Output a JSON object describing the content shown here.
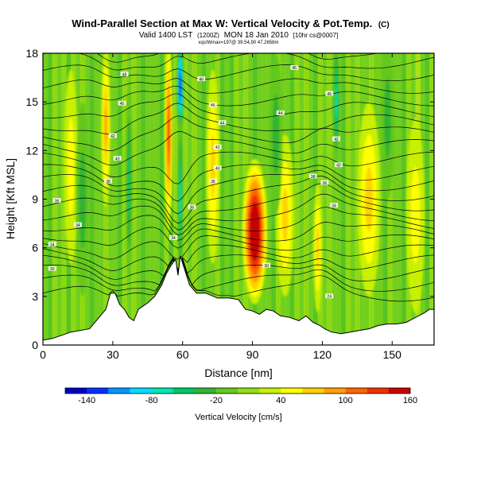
{
  "chart_data": {
    "type": "heatmap",
    "title": "Wind-Parallel Section at Max W: Vertical Velocity & Pot.Temp.",
    "title_unit": "(C)",
    "subtitle_main": "Valid 1400 LST",
    "subtitle_paren": "(1200Z)",
    "subtitle_date": "MON 18 Jan 2010",
    "subtitle_note": "[10hr cs@0007]",
    "small_note": "xqs/Wmax=197@ 39.54,90 47.2658m",
    "xlabel": "Distance [nm]",
    "ylabel": "Height [Kft MSL]",
    "xlim": [
      0,
      168
    ],
    "ylim": [
      0,
      18
    ],
    "xticks": [
      "0",
      "30",
      "60",
      "90",
      "120",
      "150"
    ],
    "yticks": [
      "0",
      "3",
      "6",
      "9",
      "12",
      "15",
      "18"
    ],
    "colorbar": {
      "label": "Vertical Velocity [cm/s]",
      "tick_labels": [
        "-140",
        "-80",
        "-20",
        "40",
        "100",
        "160"
      ],
      "colors": [
        "#0000c8",
        "#0032ff",
        "#0096ff",
        "#00dcff",
        "#00e6b4",
        "#00c864",
        "#32b432",
        "#64c81e",
        "#96dc14",
        "#c8f000",
        "#ffff00",
        "#ffd200",
        "#ffa000",
        "#ff6400",
        "#f03200",
        "#c80000"
      ]
    },
    "terrain": [
      [
        0,
        0.3
      ],
      [
        4,
        0.4
      ],
      [
        8,
        0.6
      ],
      [
        12,
        0.8
      ],
      [
        20,
        1.0
      ],
      [
        27,
        2.2
      ],
      [
        29,
        3.2
      ],
      [
        31,
        3.2
      ],
      [
        33,
        2.5
      ],
      [
        35,
        2.2
      ],
      [
        37,
        1.7
      ],
      [
        39,
        1.5
      ],
      [
        41,
        2.2
      ],
      [
        45,
        2.6
      ],
      [
        48,
        3.0
      ],
      [
        51,
        3.7
      ],
      [
        53,
        4.4
      ],
      [
        55,
        4.9
      ],
      [
        57,
        5.3
      ],
      [
        58,
        4.3
      ],
      [
        59,
        5.5
      ],
      [
        61,
        4.6
      ],
      [
        63,
        3.7
      ],
      [
        66,
        3.2
      ],
      [
        70,
        3.2
      ],
      [
        75,
        2.9
      ],
      [
        80,
        2.9
      ],
      [
        84,
        2.8
      ],
      [
        87,
        2.2
      ],
      [
        90,
        2.1
      ],
      [
        93,
        1.9
      ],
      [
        96,
        2.2
      ],
      [
        99,
        2.1
      ],
      [
        102,
        1.8
      ],
      [
        106,
        1.7
      ],
      [
        110,
        1.5
      ],
      [
        113,
        1.8
      ],
      [
        116,
        1.4
      ],
      [
        119,
        1.2
      ],
      [
        121,
        1.0
      ],
      [
        124,
        0.8
      ],
      [
        128,
        0.7
      ],
      [
        132,
        0.8
      ],
      [
        136,
        0.9
      ],
      [
        140,
        1.0
      ],
      [
        144,
        1.2
      ],
      [
        148,
        1.3
      ],
      [
        152,
        1.3
      ],
      [
        156,
        1.4
      ],
      [
        160,
        1.7
      ],
      [
        164,
        2.0
      ],
      [
        166,
        2.2
      ],
      [
        168,
        2.2
      ]
    ],
    "updrafts": [
      {
        "x": 91,
        "y": 7.0,
        "wx": 5.5,
        "wy": 4.5,
        "w": 190
      },
      {
        "x": 54,
        "y": 13.0,
        "wx": 1.8,
        "wy": 6.0,
        "w": 110
      },
      {
        "x": 27,
        "y": 13.5,
        "wx": 2.0,
        "wy": 5.0,
        "w": 60
      },
      {
        "x": 73,
        "y": 11.0,
        "wx": 3.0,
        "wy": 6.0,
        "w": 45
      },
      {
        "x": 104,
        "y": 8.0,
        "wx": 4.0,
        "wy": 5.0,
        "w": 40
      },
      {
        "x": 118,
        "y": 6.0,
        "wx": 2.0,
        "wy": 4.0,
        "w": 55
      },
      {
        "x": 140,
        "y": 9.0,
        "wx": 5.0,
        "wy": 6.0,
        "w": 40
      },
      {
        "x": 160,
        "y": 8.0,
        "wx": 4.0,
        "wy": 6.0,
        "w": 35
      },
      {
        "x": 12,
        "y": 11.0,
        "wx": 3.0,
        "wy": 6.0,
        "w": 35
      }
    ],
    "downdrafts": [
      {
        "x": 59,
        "y": 16.0,
        "wx": 1.6,
        "wy": 3.0,
        "w": -150
      },
      {
        "x": 59,
        "y": 9.0,
        "wx": 1.2,
        "wy": 5.0,
        "w": -60
      },
      {
        "x": 126,
        "y": 15.0,
        "wx": 1.5,
        "wy": 4.0,
        "w": -60
      },
      {
        "x": 37,
        "y": 10.0,
        "wx": 1.5,
        "wy": 6.0,
        "w": -40
      },
      {
        "x": 17,
        "y": 9.0,
        "wx": 3.0,
        "wy": 6.0,
        "w": -25
      },
      {
        "x": 100,
        "y": 13.0,
        "wx": 3.0,
        "wy": 5.0,
        "w": -35
      },
      {
        "x": 148,
        "y": 14.0,
        "wx": 3.0,
        "wy": 5.0,
        "w": -25
      }
    ],
    "contour_labels": [
      {
        "x": 35,
        "y": 16.7,
        "text": "48"
      },
      {
        "x": 68,
        "y": 16.4,
        "text": "46"
      },
      {
        "x": 108,
        "y": 17.1,
        "text": "46"
      },
      {
        "x": 34,
        "y": 14.9,
        "text": "45"
      },
      {
        "x": 73,
        "y": 14.8,
        "text": "45"
      },
      {
        "x": 123,
        "y": 15.5,
        "text": "45"
      },
      {
        "x": 77,
        "y": 13.7,
        "text": "44"
      },
      {
        "x": 102,
        "y": 14.3,
        "text": "44"
      },
      {
        "x": 30,
        "y": 12.9,
        "text": "42"
      },
      {
        "x": 75,
        "y": 12.2,
        "text": "42"
      },
      {
        "x": 126,
        "y": 12.7,
        "text": "42"
      },
      {
        "x": 32,
        "y": 11.5,
        "text": "40"
      },
      {
        "x": 75,
        "y": 10.9,
        "text": "40"
      },
      {
        "x": 127,
        "y": 11.1,
        "text": "40"
      },
      {
        "x": 28,
        "y": 10.1,
        "text": "38"
      },
      {
        "x": 73,
        "y": 10.1,
        "text": "38"
      },
      {
        "x": 116,
        "y": 10.4,
        "text": "38"
      },
      {
        "x": 6,
        "y": 8.9,
        "text": "36"
      },
      {
        "x": 64,
        "y": 8.5,
        "text": "36"
      },
      {
        "x": 121,
        "y": 10.0,
        "text": "36"
      },
      {
        "x": 15,
        "y": 7.4,
        "text": "34"
      },
      {
        "x": 125,
        "y": 8.6,
        "text": "34"
      },
      {
        "x": 4,
        "y": 6.2,
        "text": "34"
      },
      {
        "x": 56,
        "y": 6.6,
        "text": "34"
      },
      {
        "x": 4,
        "y": 4.7,
        "text": "30"
      },
      {
        "x": 96,
        "y": 4.9,
        "text": "30"
      },
      {
        "x": 123,
        "y": 3.0,
        "text": "24"
      }
    ]
  }
}
